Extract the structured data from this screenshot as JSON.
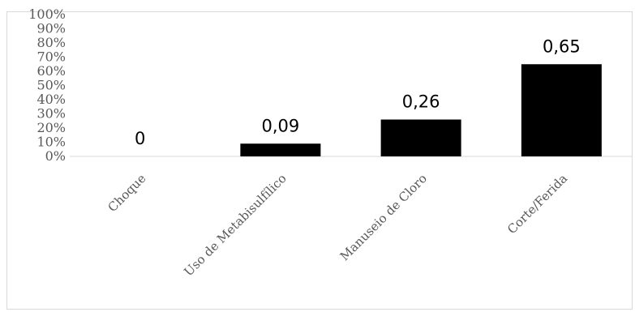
{
  "chart_data": {
    "type": "bar",
    "categories": [
      "Choque",
      "Uso de Metabisulfílico",
      "Manuseio de Cloro",
      "Corte/Ferida"
    ],
    "values": [
      0,
      0.09,
      0.26,
      0.65
    ],
    "data_labels": [
      "0",
      "0,09",
      "0,26",
      "0,65"
    ],
    "y_ticks": [
      "0%",
      "10%",
      "20%",
      "30%",
      "40%",
      "50%",
      "60%",
      "70%",
      "80%",
      "90%",
      "100%"
    ],
    "ylim": [
      0,
      1
    ],
    "title": "",
    "xlabel": "",
    "ylabel": "",
    "grid": false,
    "legend": "none",
    "bar_color": "#000000",
    "axis_color": "#d9d9d9"
  }
}
